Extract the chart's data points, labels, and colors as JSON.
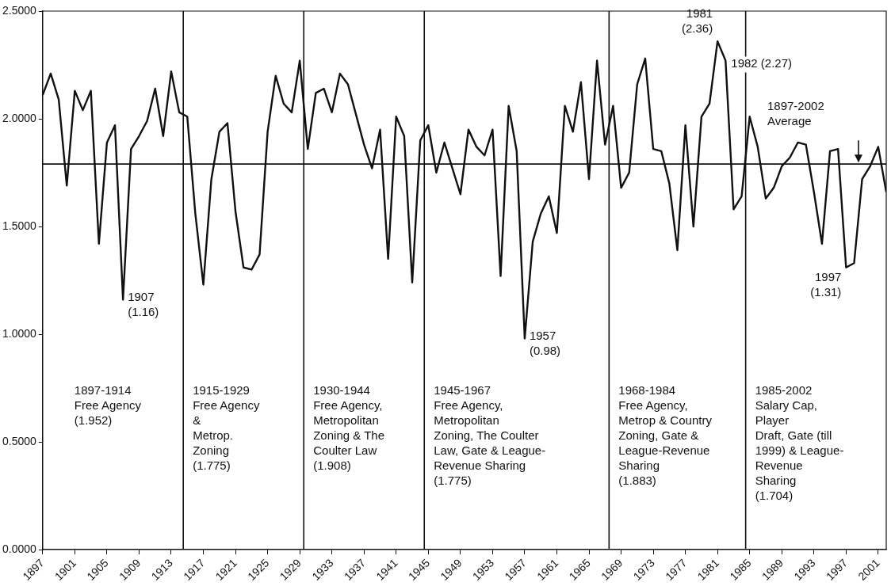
{
  "chart_data": {
    "type": "line",
    "x": [
      1897,
      1898,
      1899,
      1900,
      1901,
      1902,
      1903,
      1904,
      1905,
      1906,
      1907,
      1908,
      1909,
      1910,
      1911,
      1912,
      1913,
      1914,
      1915,
      1916,
      1917,
      1918,
      1919,
      1920,
      1921,
      1922,
      1923,
      1924,
      1925,
      1926,
      1927,
      1928,
      1929,
      1930,
      1931,
      1932,
      1933,
      1934,
      1935,
      1936,
      1937,
      1938,
      1939,
      1940,
      1941,
      1942,
      1943,
      1944,
      1945,
      1946,
      1947,
      1948,
      1949,
      1950,
      1951,
      1952,
      1953,
      1954,
      1955,
      1956,
      1957,
      1958,
      1959,
      1960,
      1961,
      1962,
      1963,
      1964,
      1965,
      1966,
      1967,
      1968,
      1969,
      1970,
      1971,
      1972,
      1973,
      1974,
      1975,
      1976,
      1977,
      1978,
      1979,
      1980,
      1981,
      1982,
      1983,
      1984,
      1985,
      1986,
      1987,
      1988,
      1989,
      1990,
      1991,
      1992,
      1993,
      1994,
      1995,
      1996,
      1997,
      1998,
      1999,
      2000,
      2001,
      2002
    ],
    "series": [
      {
        "color": "#111111",
        "values": [
          2.11,
          2.21,
          2.09,
          1.69,
          2.13,
          2.04,
          2.13,
          1.42,
          1.89,
          1.97,
          1.16,
          1.86,
          1.92,
          1.99,
          2.14,
          1.92,
          2.22,
          2.03,
          2.01,
          1.56,
          1.23,
          1.72,
          1.94,
          1.98,
          1.57,
          1.31,
          1.3,
          1.37,
          1.94,
          2.2,
          2.07,
          2.03,
          2.27,
          1.86,
          2.12,
          2.14,
          2.03,
          2.21,
          2.16,
          2.02,
          1.88,
          1.77,
          1.95,
          1.35,
          2.01,
          1.92,
          1.24,
          1.9,
          1.97,
          1.75,
          1.89,
          1.77,
          1.65,
          1.95,
          1.87,
          1.83,
          1.95,
          1.27,
          2.06,
          1.85,
          0.98,
          1.43,
          1.56,
          1.64,
          1.47,
          2.06,
          1.94,
          2.17,
          1.72,
          2.27,
          1.88,
          2.06,
          1.68,
          1.75,
          2.16,
          2.28,
          1.86,
          1.85,
          1.7,
          1.39,
          1.97,
          1.5,
          2.01,
          2.07,
          2.36,
          2.27,
          1.58,
          1.64,
          2.01,
          1.87,
          1.63,
          1.68,
          1.78,
          1.82,
          1.89,
          1.88,
          1.66,
          1.42,
          1.85,
          1.86,
          1.31,
          1.33,
          1.72,
          1.78,
          1.87,
          1.66
        ]
      }
    ],
    "xlim": [
      1897,
      2002
    ],
    "xticks": [
      1897,
      1901,
      1905,
      1909,
      1913,
      1917,
      1921,
      1925,
      1929,
      1933,
      1937,
      1941,
      1945,
      1949,
      1953,
      1957,
      1961,
      1965,
      1969,
      1973,
      1977,
      1981,
      1985,
      1989,
      1993,
      1997,
      2001
    ],
    "ylim": [
      0,
      2.5
    ],
    "yticks": [
      {
        "value": 0,
        "label": "0.0000"
      },
      {
        "value": 0.5,
        "label": "0.5000"
      },
      {
        "value": 1,
        "label": "1.0000"
      },
      {
        "value": 1.5,
        "label": "1.5000"
      },
      {
        "value": 2,
        "label": "2.0000"
      },
      {
        "value": 2.5,
        "label": "2.5000"
      }
    ],
    "grid": false,
    "legend": false,
    "marker": "none",
    "line_style": "solid",
    "ref_lines": [
      {
        "axis": "y",
        "value": 1.79,
        "label": "1897-2002\nAverage"
      },
      {
        "axis": "x",
        "value": 1914.5,
        "label": null
      },
      {
        "axis": "x",
        "value": 1929.5,
        "label": null
      },
      {
        "axis": "x",
        "value": 1944.5,
        "label": null
      },
      {
        "axis": "x",
        "value": 1967.5,
        "label": null
      },
      {
        "axis": "x",
        "value": 1984.5,
        "label": null
      }
    ],
    "annotations": [
      "1897-1914\nFree Agency\n(1.952)",
      "1915-1929\nFree Agency\n&\nMetrop.\nZoning\n(1.775)",
      "1930-1944\nFree Agency,\nMetropolitan\nZoning & The\nCoulter Law\n(1.908)",
      "1945-1967\nFree Agency,\nMetropolitan\nZoning, The Coulter\nLaw, Gate & League-\nRevenue Sharing\n(1.775)",
      "1968-1984\nFree Agency,\nMetrop & Country\nZoning, Gate &\nLeague-Revenue\nSharing\n(1.883)",
      "1985-2002\nSalary Cap,\nPlayer\nDraft, Gate (till\n1999) & League-\nRevenue\nSharing\n(1.704)",
      {
        "text": "1907\n(1.16)",
        "x": 1907,
        "y": 1.16
      },
      {
        "text": "1957\n(0.98)",
        "x": 1957,
        "y": 0.98
      },
      {
        "text": "1981\n(2.36)",
        "x": 1981,
        "y": 2.36
      },
      {
        "text": "1982 (2.27)",
        "x": 1982,
        "y": 2.27
      },
      {
        "text": "1997\n(1.31)",
        "x": 1997,
        "y": 1.31
      }
    ]
  }
}
